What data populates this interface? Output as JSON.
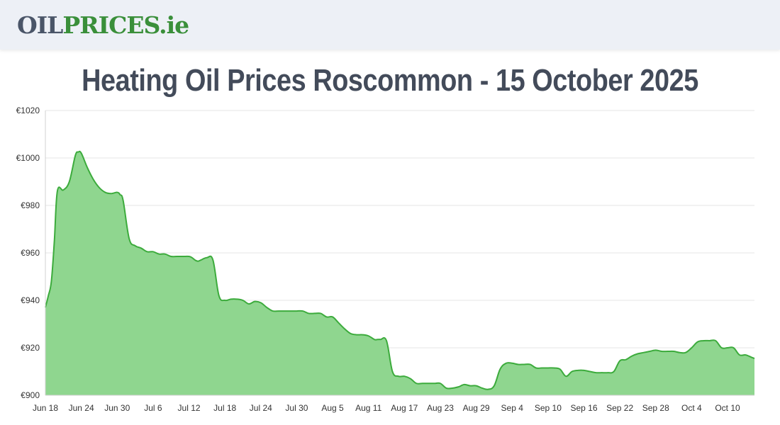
{
  "header": {
    "logo_oil": "OIL",
    "logo_prices": "PRICES",
    "logo_ie": ".ie"
  },
  "page": {
    "title": "Heating Oil Prices Roscommon - 15 October 2025"
  },
  "colors": {
    "line": "#3cab3c",
    "area": "#8fd68f",
    "grid": "#e6e6e6",
    "text": "#434b5a"
  },
  "chart_data": {
    "type": "area",
    "title": "",
    "xlabel": "",
    "ylabel": "",
    "ylim": [
      900,
      1020
    ],
    "y_ticks": [
      900,
      920,
      940,
      960,
      980,
      1000,
      1020
    ],
    "y_tick_labels": [
      "€900",
      "€920",
      "€940",
      "€960",
      "€980",
      "€1000",
      "€1020"
    ],
    "x_tick_labels": [
      "Jun 18",
      "Jun 24",
      "Jun 30",
      "Jul 6",
      "Jul 12",
      "Jul 18",
      "Jul 24",
      "Jul 30",
      "Aug 5",
      "Aug 11",
      "Aug 17",
      "Aug 23",
      "Aug 29",
      "Sep 4",
      "Sep 10",
      "Sep 16",
      "Sep 22",
      "Sep 28",
      "Oct 4",
      "Oct 10"
    ],
    "x_tick_days": [
      0,
      6,
      12,
      18,
      24,
      30,
      36,
      42,
      48,
      54,
      60,
      66,
      72,
      78,
      84,
      90,
      96,
      102,
      108,
      114
    ],
    "grid": true,
    "legend": "none",
    "series": [
      {
        "x": [
          0,
          0.5,
          1,
          1.5,
          2,
          3,
          4,
          5,
          5.5,
          6,
          7,
          8,
          9,
          10,
          11,
          12,
          12.5,
          13,
          14,
          15,
          16,
          17,
          18,
          19,
          20,
          21,
          22,
          23,
          24,
          24.5,
          25,
          25.5,
          26,
          27,
          28,
          29,
          30,
          31,
          32,
          33,
          34,
          35,
          36,
          37,
          38,
          39,
          40,
          41,
          42,
          43,
          44,
          45,
          46,
          47,
          48,
          49,
          50,
          51,
          52,
          53,
          54,
          55,
          55.5,
          56,
          57,
          58,
          59,
          60,
          61,
          62,
          63,
          64,
          65,
          66,
          67,
          68,
          69,
          70,
          71,
          72,
          73,
          74,
          75,
          76,
          77,
          78,
          79,
          80,
          81,
          82,
          83,
          84,
          85,
          86,
          87,
          88,
          89,
          90,
          91,
          92,
          93,
          94,
          95,
          96,
          97,
          98,
          99,
          100,
          101,
          102,
          103,
          104,
          105,
          106,
          107,
          108,
          109,
          110,
          111,
          112,
          113,
          114,
          115,
          116,
          117,
          118,
          118.5
        ],
        "y": [
          937,
          942,
          948,
          965,
          986,
          986.5,
          990,
          1001,
          1002.5,
          1002,
          996,
          991,
          987.5,
          985.5,
          985,
          985.5,
          984.5,
          982,
          966,
          963,
          962,
          960.5,
          960.5,
          959.5,
          959.5,
          958.5,
          958.5,
          958.5,
          958.5,
          958,
          957,
          956.5,
          957,
          958,
          957,
          942,
          940,
          940.5,
          940.5,
          940,
          938.5,
          939.5,
          939,
          937,
          935.5,
          935.5,
          935.5,
          935.5,
          935.5,
          935.5,
          934.5,
          934.5,
          934.5,
          933,
          933,
          930.5,
          928,
          926,
          925.5,
          925.5,
          925,
          923.5,
          923.5,
          923.5,
          923,
          910,
          908,
          908,
          907,
          905,
          905,
          905,
          905,
          905,
          903,
          903,
          903.5,
          904.5,
          904,
          904,
          903,
          902.5,
          904,
          911,
          913.5,
          913.5,
          913,
          913,
          913,
          911.5,
          911.5,
          911.5,
          911.5,
          911,
          908,
          910,
          910.5,
          910.5,
          910,
          909.5,
          909.5,
          909.5,
          910,
          914.5,
          915,
          916.5,
          917.5,
          918,
          918.5,
          919,
          918.5,
          918.5,
          918.5,
          918,
          918,
          920,
          922.5,
          923,
          923,
          923,
          920,
          920,
          920,
          917,
          917,
          916,
          915.5
        ]
      }
    ]
  }
}
